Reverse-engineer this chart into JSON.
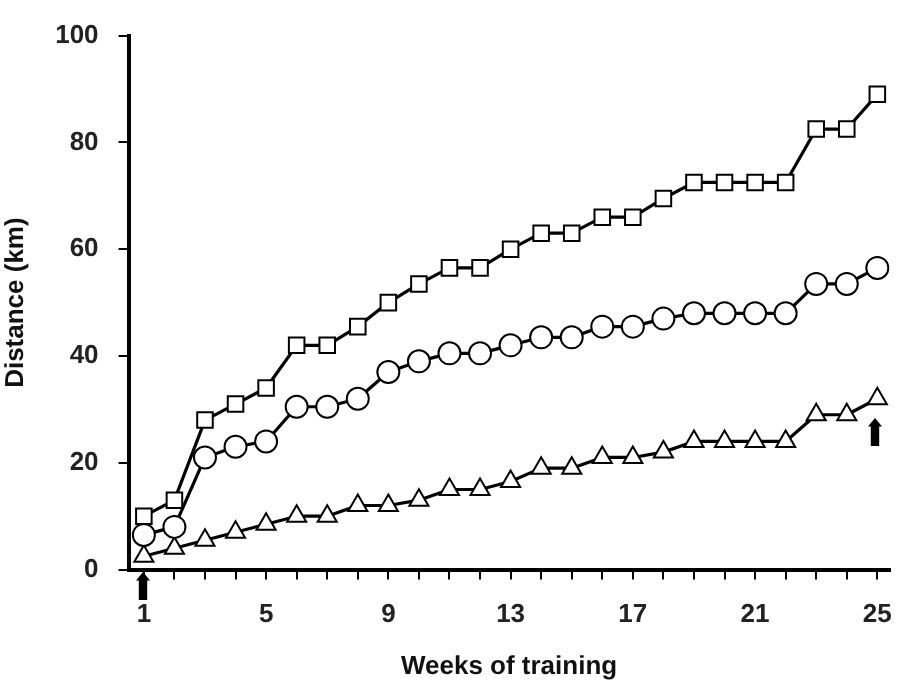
{
  "chart_data": {
    "type": "line",
    "xlabel": "Weeks of training",
    "ylabel": "Distance (km)",
    "x": [
      1,
      2,
      3,
      4,
      5,
      6,
      7,
      8,
      9,
      10,
      11,
      12,
      13,
      14,
      15,
      16,
      17,
      18,
      19,
      20,
      21,
      22,
      23,
      24,
      25
    ],
    "series": [
      {
        "color": "#000000",
        "marker": "square",
        "values": [
          10,
          13,
          28,
          31,
          34,
          42,
          42,
          45.5,
          50,
          53.5,
          56.5,
          56.5,
          60,
          63,
          63,
          66,
          66,
          69.5,
          72.5,
          72.5,
          72.5,
          72.5,
          82.5,
          82.5,
          89
        ]
      },
      {
        "color": "#000000",
        "marker": "circle",
        "values": [
          6.5,
          8,
          21,
          23,
          24,
          30.5,
          30.5,
          32,
          37,
          39,
          40.5,
          40.5,
          42,
          43.5,
          43.5,
          45.5,
          45.5,
          47,
          48,
          48,
          48,
          48,
          53.5,
          53.5,
          56.5
        ]
      },
      {
        "color": "#000000",
        "marker": "triangle",
        "values": [
          2.5,
          4,
          5.5,
          7,
          8.5,
          10,
          10,
          12,
          12,
          13,
          15,
          15,
          16.5,
          19,
          19,
          21,
          21,
          22,
          24,
          24,
          24,
          24,
          29,
          29,
          32
        ]
      }
    ],
    "xlim": [
      0.5,
      25.4
    ],
    "xticks": [
      1,
      {
        "value": 2,
        "label": null
      },
      {
        "value": 3,
        "label": null
      },
      {
        "value": 4,
        "label": null
      },
      5,
      {
        "value": 6,
        "label": null
      },
      {
        "value": 7,
        "label": null
      },
      {
        "value": 8,
        "label": null
      },
      9,
      {
        "value": 10,
        "label": null
      },
      {
        "value": 11,
        "label": null
      },
      {
        "value": 12,
        "label": null
      },
      13,
      {
        "value": 14,
        "label": null
      },
      {
        "value": 15,
        "label": null
      },
      {
        "value": 16,
        "label": null
      },
      17,
      {
        "value": 18,
        "label": null
      },
      {
        "value": 19,
        "label": null
      },
      {
        "value": 20,
        "label": null
      },
      21,
      {
        "value": 22,
        "label": null
      },
      {
        "value": 23,
        "label": null
      },
      {
        "value": 24,
        "label": null
      },
      25
    ],
    "ylim": [
      0,
      100
    ],
    "yticks": [
      0,
      20,
      40,
      60,
      80,
      100
    ],
    "grid": false,
    "legend": false,
    "line_style": "solid"
  }
}
